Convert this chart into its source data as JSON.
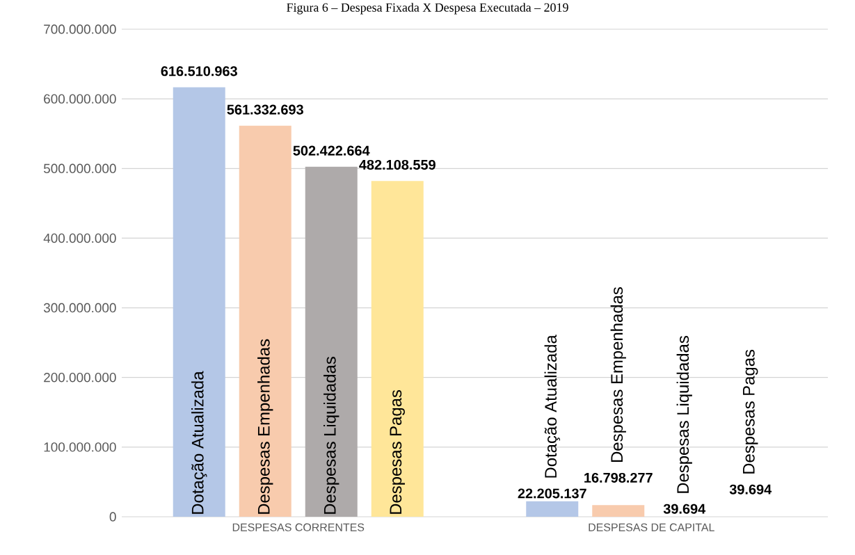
{
  "chart_data": {
    "type": "bar",
    "title": "Figura 6 – Despesa Fixada X Despesa Executada – 2019",
    "categories": [
      "DESPESAS CORRENTES",
      "DESPESAS DE CAPITAL"
    ],
    "series": [
      {
        "name": "Dotação Atualizada",
        "color": "#b4c7e7",
        "values": [
          616510963,
          22205137
        ],
        "value_labels": [
          "616.510.963",
          "22.205.137"
        ]
      },
      {
        "name": "Despesas Empenhadas",
        "color": "#f8cbad",
        "values": [
          561332693,
          16798277
        ],
        "value_labels": [
          "561.332.693",
          "16.798.277"
        ]
      },
      {
        "name": "Despesas Liquidadas",
        "color": "#aeaaaa",
        "values": [
          502422664,
          39694
        ],
        "value_labels": [
          "502.422.664",
          "39.694"
        ]
      },
      {
        "name": "Despesas Pagas",
        "color": "#ffe699",
        "values": [
          482108559,
          39694
        ],
        "value_labels": [
          "482.108.559",
          "39.694"
        ]
      }
    ],
    "ylim": [
      0,
      700000000
    ],
    "yticks": [
      {
        "value": 0,
        "label": "0"
      },
      {
        "value": 100000000,
        "label": "100.000.000"
      },
      {
        "value": 200000000,
        "label": "200.000.000"
      },
      {
        "value": 300000000,
        "label": "300.000.000"
      },
      {
        "value": 400000000,
        "label": "400.000.000"
      },
      {
        "value": 500000000,
        "label": "500.000.000"
      },
      {
        "value": 600000000,
        "label": "600.000.000"
      },
      {
        "value": 700000000,
        "label": "700.000.000"
      }
    ],
    "grid": "y"
  }
}
